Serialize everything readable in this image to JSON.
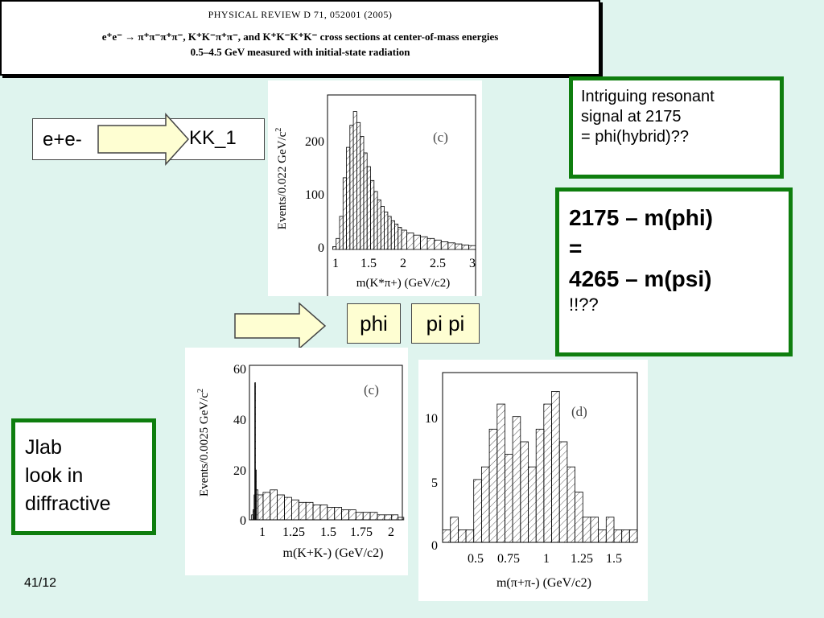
{
  "header": {
    "journal": "PHYSICAL REVIEW D 71, 052001 (2005)",
    "title_line1": "e⁺e⁻ → π⁺π⁻π⁺π⁻, K⁺K⁻π⁺π⁻, and K⁺K⁻K⁺K⁻ cross sections at center-of-mass energies",
    "title_line2": "0.5–4.5 GeV measured with initial-state radiation"
  },
  "reaction_box": {
    "left": "e+e-",
    "right": "KK_1"
  },
  "note_box": {
    "line1": "Intriguing resonant",
    "line2": "signal at 2175",
    "line3": "= phi(hybrid)??"
  },
  "mass_box": {
    "line1": "2175 – m(phi)",
    "line2": "=",
    "line3": "4265 – m(psi)",
    "line4": "!!??"
  },
  "phi_label": "phi",
  "pipi_label": "pi pi",
  "jlab_box": {
    "line1": "Jlab",
    "line2": "look in",
    "line3": "diffractive"
  },
  "slide_number": "41/12",
  "colors": {
    "green_border": "#0e7e0e",
    "background": "#dff4ee",
    "arrow_fill": "#fefed2"
  },
  "charts": {
    "kstar": {
      "panel_label": "(c)",
      "ylabel_text": "Events/0.022 GeV/c",
      "ylabel_sup": "2",
      "xlabel": "m(K*π+) (GeV/c2)",
      "yticks": [
        "0",
        "100",
        "200"
      ],
      "xticks": [
        "1",
        "1.5",
        "2",
        "2.5",
        "3"
      ]
    },
    "kk": {
      "panel_label": "(c)",
      "ylabel_text": "Events/0.0025 GeV/c",
      "ylabel_sup": "2",
      "xlabel": "m(K+K-) (GeV/c2)",
      "yticks": [
        "0",
        "20",
        "40",
        "60"
      ],
      "xticks": [
        "1",
        "1.25",
        "1.5",
        "1.75",
        "2"
      ]
    },
    "pipi": {
      "panel_label": "(d)",
      "xlabel": "m(π+π-) (GeV/c2)",
      "yticks": [
        "0",
        "5",
        "10"
      ],
      "xticks": [
        "0.5",
        "0.75",
        "1",
        "1.25",
        "1.5"
      ]
    }
  },
  "chart_data": [
    {
      "type": "bar",
      "name": "kstar",
      "xlim": [
        0.9,
        3.05
      ],
      "ylim": [
        0,
        280
      ],
      "x": [
        1.0,
        1.05,
        1.1,
        1.15,
        1.2,
        1.25,
        1.3,
        1.35,
        1.4,
        1.45,
        1.5,
        1.55,
        1.6,
        1.65,
        1.7,
        1.75,
        1.8,
        1.85,
        1.9,
        1.95,
        2.0,
        2.1,
        2.2,
        2.3,
        2.4,
        2.5,
        2.6,
        2.7,
        2.8,
        2.9,
        3.0
      ],
      "values": [
        5,
        20,
        60,
        130,
        185,
        225,
        250,
        230,
        205,
        175,
        150,
        125,
        105,
        90,
        78,
        68,
        60,
        52,
        46,
        40,
        35,
        30,
        26,
        23,
        20,
        17,
        14,
        12,
        10,
        8,
        7
      ]
    },
    {
      "type": "bar",
      "name": "kk",
      "xlim": [
        0.98,
        2.05
      ],
      "ylim": [
        0,
        62
      ],
      "x": [
        1.0,
        1.01,
        1.015,
        1.019,
        1.025,
        1.03,
        1.05,
        1.1,
        1.15,
        1.2,
        1.25,
        1.3,
        1.35,
        1.4,
        1.45,
        1.5,
        1.55,
        1.6,
        1.65,
        1.7,
        1.75,
        1.8,
        1.85,
        1.9,
        1.95,
        2.0,
        2.04
      ],
      "values": [
        2,
        4,
        10,
        55,
        20,
        12,
        10,
        11,
        12,
        10,
        9,
        8,
        7,
        7,
        6,
        6,
        5,
        5,
        4,
        4,
        3,
        3,
        3,
        2,
        2,
        2,
        1
      ]
    },
    {
      "type": "bar",
      "name": "pipi",
      "xlim": [
        0.3,
        1.55
      ],
      "ylim": [
        0,
        13.5
      ],
      "x": [
        0.325,
        0.375,
        0.425,
        0.475,
        0.525,
        0.575,
        0.625,
        0.675,
        0.725,
        0.775,
        0.825,
        0.875,
        0.925,
        0.975,
        1.025,
        1.075,
        1.125,
        1.175,
        1.225,
        1.275,
        1.325,
        1.375,
        1.425,
        1.475,
        1.525
      ],
      "values": [
        1,
        2,
        1,
        1,
        5,
        6,
        9,
        11,
        7,
        10,
        8,
        6,
        9,
        11,
        12,
        8,
        6,
        4,
        2,
        2,
        1,
        2,
        1,
        1,
        1
      ]
    }
  ]
}
